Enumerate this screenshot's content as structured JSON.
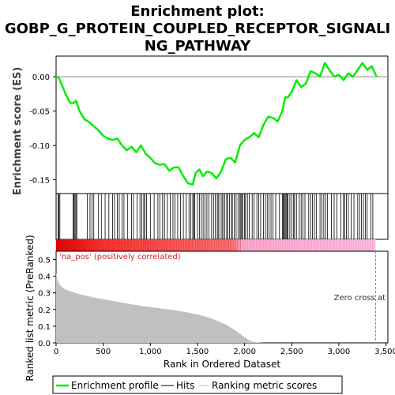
{
  "chart_data": {
    "type": "line",
    "title_lines": [
      "Enrichment plot:",
      "GOBP_G_PROTEIN_COUPLED_RECEPTOR_SIGNALI",
      "NG_PATHWAY"
    ],
    "es_panel": {
      "ylabel": "Enrichment score (ES)",
      "yticks": [
        "0.00",
        "-0.05",
        "-0.10",
        "-0.15"
      ],
      "ytick_values": [
        0.0,
        -0.05,
        -0.1,
        -0.15
      ],
      "ylim": [
        -0.17,
        0.03
      ],
      "series": {
        "name": "Enrichment profile",
        "color": "#00ee00",
        "x": [
          0,
          30,
          60,
          100,
          150,
          190,
          210,
          250,
          300,
          350,
          400,
          450,
          500,
          550,
          600,
          650,
          700,
          750,
          800,
          850,
          900,
          950,
          1000,
          1050,
          1100,
          1150,
          1200,
          1250,
          1300,
          1350,
          1400,
          1450,
          1480,
          1520,
          1560,
          1600,
          1650,
          1700,
          1750,
          1800,
          1850,
          1900,
          1950,
          2000,
          2050,
          2100,
          2150,
          2200,
          2250,
          2300,
          2350,
          2400,
          2430,
          2460,
          2500,
          2550,
          2600,
          2650,
          2700,
          2750,
          2800,
          2850,
          2900,
          2950,
          3000,
          3050,
          3100,
          3150,
          3200,
          3250,
          3300,
          3350,
          3400
        ],
        "y": [
          0.0,
          -0.002,
          -0.012,
          -0.025,
          -0.038,
          -0.038,
          -0.035,
          -0.05,
          -0.062,
          -0.066,
          -0.072,
          -0.078,
          -0.086,
          -0.09,
          -0.092,
          -0.09,
          -0.1,
          -0.107,
          -0.102,
          -0.11,
          -0.1,
          -0.112,
          -0.118,
          -0.126,
          -0.128,
          -0.127,
          -0.137,
          -0.132,
          -0.132,
          -0.145,
          -0.155,
          -0.157,
          -0.14,
          -0.135,
          -0.145,
          -0.138,
          -0.14,
          -0.148,
          -0.138,
          -0.12,
          -0.118,
          -0.125,
          -0.1,
          -0.092,
          -0.088,
          -0.082,
          -0.088,
          -0.07,
          -0.058,
          -0.06,
          -0.065,
          -0.05,
          -0.03,
          -0.03,
          -0.022,
          -0.005,
          -0.015,
          -0.01,
          0.008,
          0.005,
          0.0,
          0.02,
          0.01,
          0.0,
          0.003,
          -0.005,
          0.005,
          0.0,
          0.01,
          0.02,
          0.01,
          0.015,
          0.0
        ]
      }
    },
    "hits_panel": {
      "name": "Hits",
      "hit_positions": [
        20,
        30,
        40,
        180,
        190,
        200,
        210,
        220,
        330,
        360,
        380,
        400,
        450,
        480,
        520,
        560,
        600,
        620,
        650,
        670,
        700,
        720,
        760,
        800,
        820,
        860,
        890,
        910,
        930,
        940,
        960,
        1000,
        1040,
        1080,
        1100,
        1130,
        1150,
        1180,
        1210,
        1240,
        1260,
        1290,
        1320,
        1350,
        1380,
        1410,
        1430,
        1450,
        1460,
        1470,
        1500,
        1520,
        1540,
        1560,
        1580,
        1600,
        1620,
        1650,
        1670,
        1690,
        1710,
        1720,
        1740,
        1760,
        1770,
        1790,
        1810,
        1820,
        1840,
        1860,
        1870,
        1890,
        1910,
        1930,
        1950,
        1960,
        1970,
        1980,
        2000,
        2010,
        2030,
        2050,
        2080,
        2100,
        2130,
        2150,
        2170,
        2200,
        2220,
        2240,
        2260,
        2280,
        2300,
        2330,
        2370,
        2400,
        2410,
        2420,
        2430,
        2440,
        2450,
        2460,
        2480,
        2500,
        2520,
        2530,
        2550,
        2580,
        2600,
        2620,
        2640,
        2680,
        2700,
        2720,
        2740,
        2760,
        2800,
        2820,
        2840,
        2860,
        2880,
        2920,
        2950,
        2980,
        3020,
        3050,
        3060,
        3080,
        3100,
        3130,
        3160,
        3200,
        3220,
        3240,
        3260,
        3280,
        3300,
        3340,
        3360
      ]
    },
    "rank_panel": {
      "xlabel": "Rank in Ordered Dataset",
      "ylabel": "Ranked list metric (PreRanked)",
      "yticks": [
        "0.0",
        "0.1",
        "0.2",
        "0.3",
        "0.4",
        "0.5"
      ],
      "ytick_values": [
        0.0,
        0.1,
        0.2,
        0.3,
        0.4,
        0.5
      ],
      "ylim": [
        0,
        0.55
      ],
      "xticks": [
        "0",
        "500",
        "1,000",
        "1,500",
        "2,000",
        "2,500",
        "3,000",
        "3,500"
      ],
      "xtick_values": [
        0,
        500,
        1000,
        1500,
        2000,
        2500,
        3000,
        3500
      ],
      "xlim": [
        0,
        3520
      ],
      "series": {
        "name": "Ranking metric scores",
        "color": "#c0c0c0",
        "x": [
          0,
          20,
          50,
          100,
          200,
          300,
          400,
          500,
          600,
          700,
          800,
          900,
          1000,
          1100,
          1200,
          1300,
          1400,
          1500,
          1600,
          1700,
          1800,
          1900,
          1950,
          2000,
          2050,
          2100,
          2150,
          2200,
          2300,
          2500,
          3000,
          3400
        ],
        "y": [
          0.42,
          0.37,
          0.34,
          0.32,
          0.3,
          0.285,
          0.272,
          0.262,
          0.252,
          0.242,
          0.232,
          0.223,
          0.215,
          0.207,
          0.2,
          0.192,
          0.182,
          0.17,
          0.155,
          0.135,
          0.11,
          0.075,
          0.055,
          0.035,
          0.015,
          0.005,
          0.002,
          0.0,
          0.0,
          0.0,
          0.0,
          0.0
        ]
      },
      "zero_cross": 3390,
      "annotation_left": "'na_pos' (positively correlated)",
      "annotation_right": "Zero cross at"
    },
    "legend": [
      "Enrichment profile",
      "Hits",
      "Ranking metric scores"
    ]
  }
}
